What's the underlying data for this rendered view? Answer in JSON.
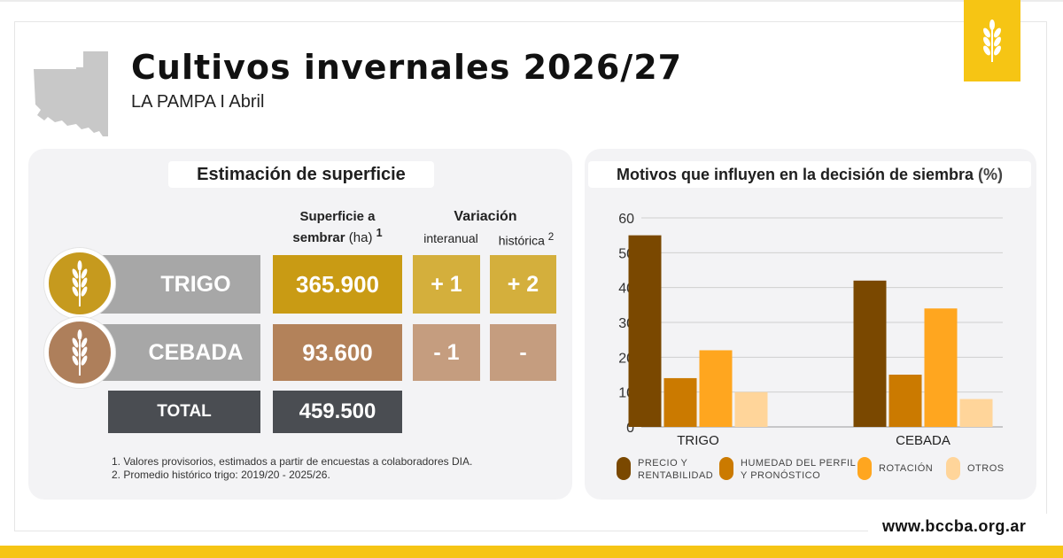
{
  "header": {
    "title": "Cultivos invernales 2026/27",
    "subtitle": "LA PAMPA I Abril",
    "badge_icon": "wheat-icon"
  },
  "surface": {
    "title": "Estimación de superficie",
    "col_surface": "Superficie a sembrar",
    "col_surface_unit": "(ha)",
    "col_surface_note": "1",
    "col_variation": "Variación",
    "col_interanual": "interanual",
    "col_historica": "histórica",
    "col_historica_note": "2",
    "rows": [
      {
        "crop": "TRIGO",
        "surface": "365.900",
        "interanual": "+ 1",
        "historica": "+ 2",
        "color": "#c99b14"
      },
      {
        "crop": "CEBADA",
        "surface": "93.600",
        "interanual": "- 1",
        "historica": "-",
        "color": "#b3825a"
      }
    ],
    "total_label": "TOTAL",
    "total_value": "459.500",
    "notes": [
      "1. Valores provisorios, estimados a partir de encuestas a colaboradores DIA.",
      "2. Promedio histórico trigo: 2019/20 - 2025/26."
    ]
  },
  "motives": {
    "title": "Motivos que influyen en la decisión de siembra",
    "unit": "(%)"
  },
  "chart_data": {
    "type": "bar",
    "categories": [
      "TRIGO",
      "CEBADA"
    ],
    "series": [
      {
        "name": "PRECIO Y RENTABILIDAD",
        "values": [
          55,
          42
        ],
        "color": "#7a4800"
      },
      {
        "name": "HUMEDAD DEL PERFIL Y PRONÓSTICO",
        "values": [
          14,
          15
        ],
        "color": "#cb7a00"
      },
      {
        "name": "ROTACIÓN",
        "values": [
          22,
          34
        ],
        "color": "#ffa61f"
      },
      {
        "name": "OTROS",
        "values": [
          10,
          8
        ],
        "color": "#ffd59a"
      }
    ],
    "yticks": [
      0,
      10,
      20,
      30,
      40,
      50,
      60
    ],
    "ylim": [
      0,
      60
    ],
    "grid": true,
    "legend": "bottom"
  },
  "legend_lines": [
    [
      "PRECIO Y",
      "RENTABILIDAD"
    ],
    [
      "HUMEDAD DEL PERFIL",
      "Y PRONÓSTICO"
    ],
    [
      "ROTACIÓN"
    ],
    [
      "OTROS"
    ]
  ],
  "footer": {
    "url": "www.bccba.org.ar",
    "accent": "#f6c514"
  }
}
